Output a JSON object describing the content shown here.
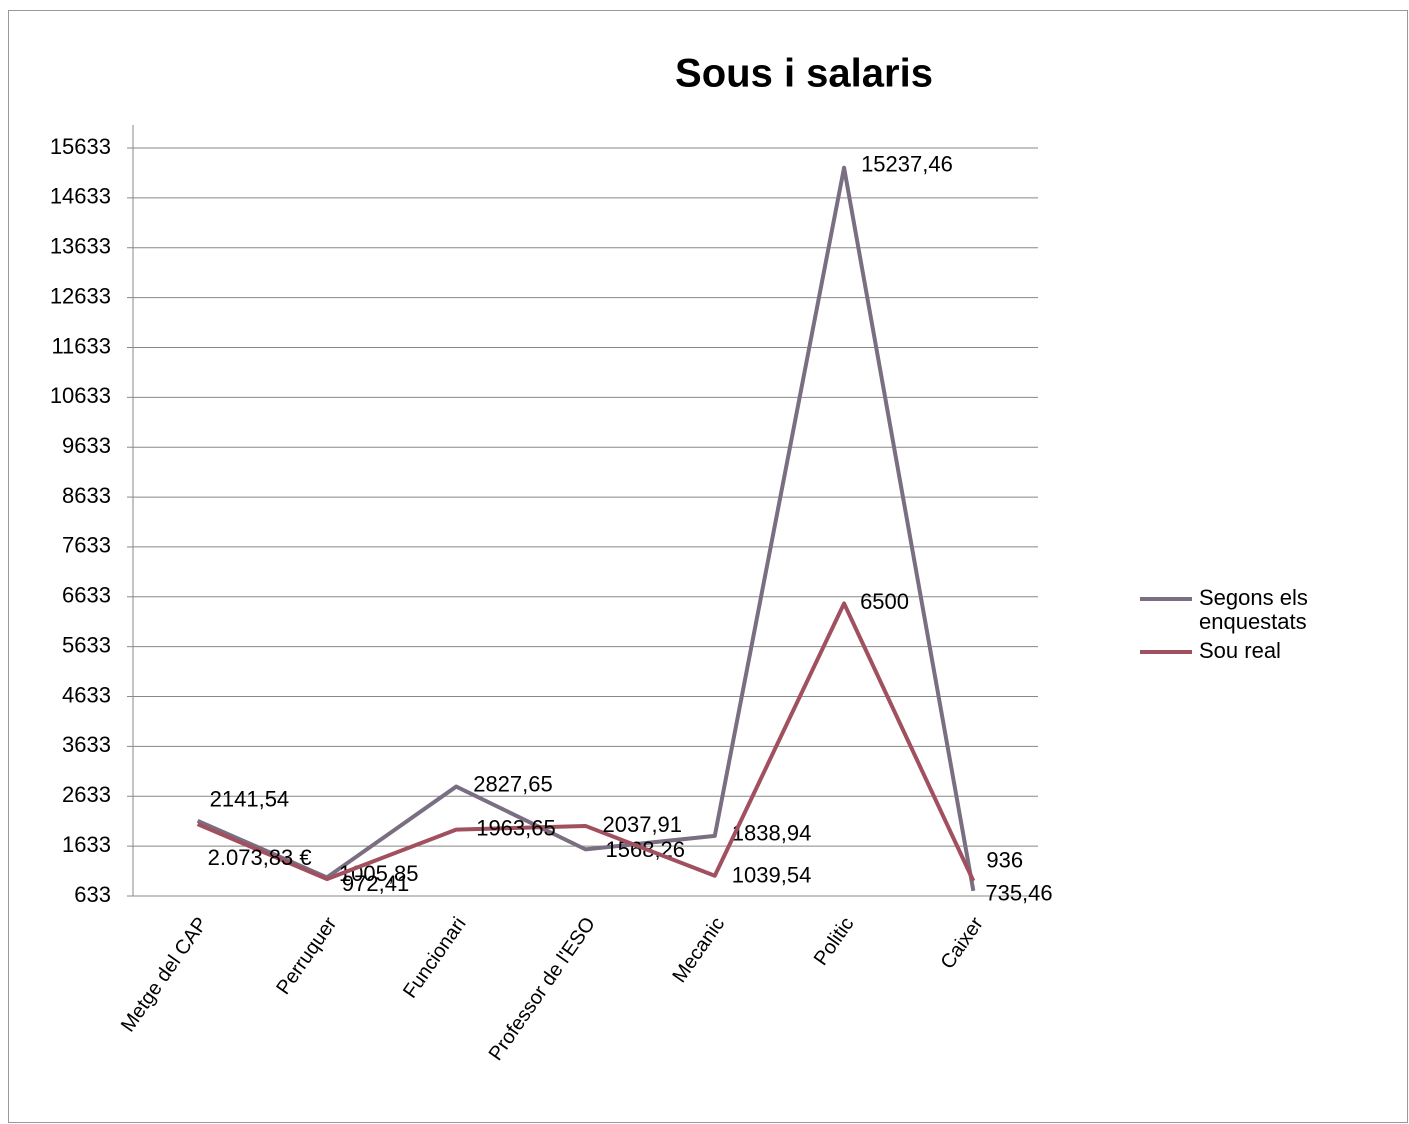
{
  "chart_data": {
    "type": "line",
    "title": "Sous i salaris",
    "categories": [
      "Metge del CAP",
      "Perruquer",
      "Funcionari",
      "Professor de l'ESO",
      "Mecanic",
      "Politic",
      "Caixer"
    ],
    "series": [
      {
        "name": "Segons els enquestats",
        "color": "#7a6e82",
        "values": [
          2141.54,
          1005.85,
          2827.65,
          1568.26,
          1838.94,
          15237.46,
          735.46
        ],
        "value_labels": [
          "2141,54",
          "1005,85",
          "2827,65",
          "1568,26",
          "1838,94",
          "15237,46",
          "735,46"
        ]
      },
      {
        "name": "Sou real",
        "color": "#a0505f",
        "values": [
          2073.83,
          972.41,
          1963.65,
          2037.91,
          1039.54,
          6500,
          936
        ],
        "value_labels": [
          "2.073,83 €",
          "972,41",
          "1963,65",
          "2037,91",
          "1039,54",
          "6500",
          "936"
        ]
      }
    ],
    "ylim": [
      633,
      15633
    ],
    "yticks": [
      633,
      1633,
      2633,
      3633,
      4633,
      5633,
      6633,
      7633,
      8633,
      9633,
      10633,
      11633,
      12633,
      13633,
      14633,
      15633
    ],
    "grid": true,
    "legend": "right"
  }
}
